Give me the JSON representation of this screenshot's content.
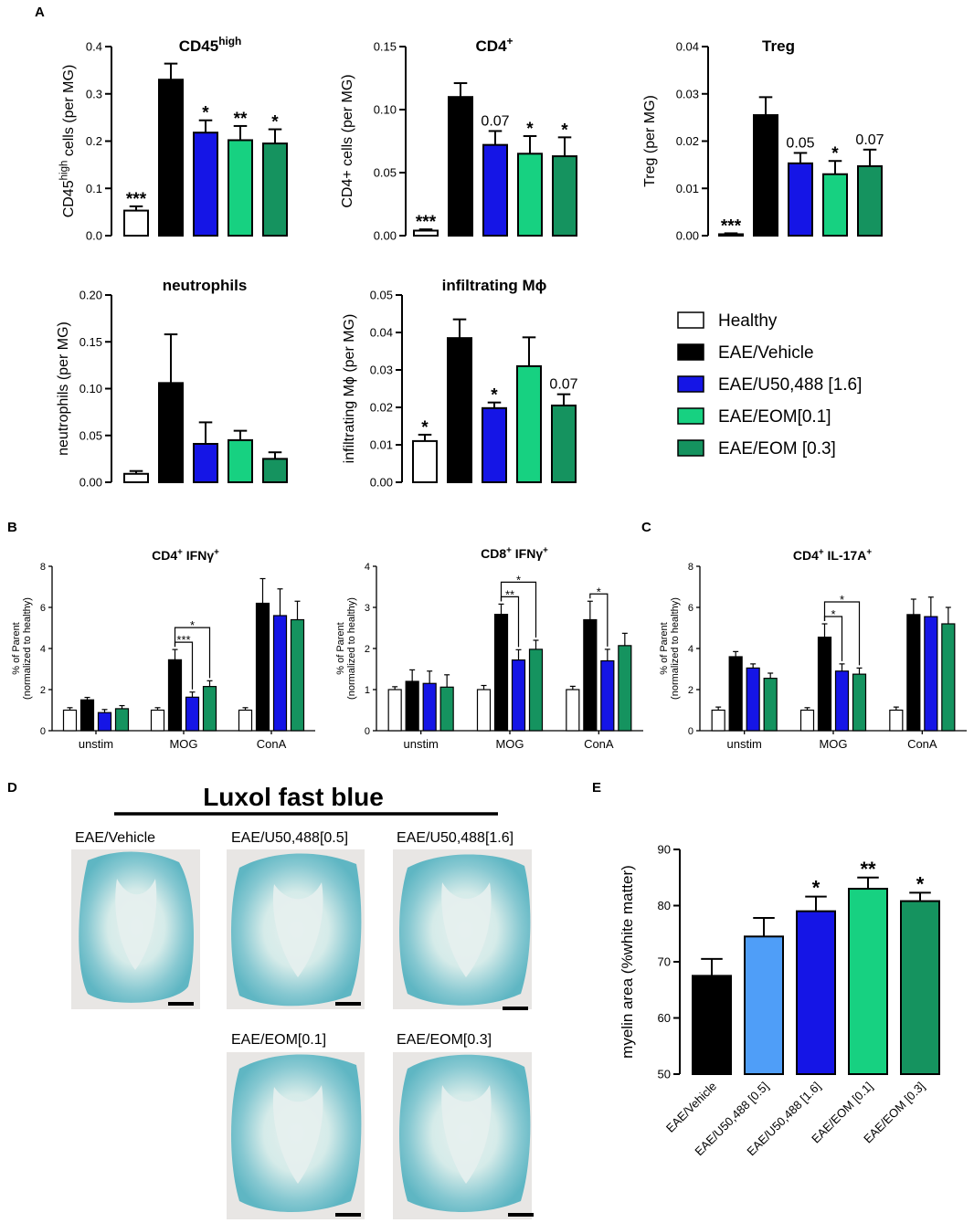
{
  "panel_labels": [
    "A",
    "B",
    "C",
    "D",
    "E"
  ],
  "colors": {
    "healthy": "#ffffff",
    "vehicle": "#000000",
    "u50_05": "#4f9ef8",
    "u50_16": "#1515e6",
    "eom_01": "#17d181",
    "eom_03": "#15935f",
    "tissue_fill": "#62b8c4",
    "tissue_light": "#e6f0ee",
    "photo_bg": "#e8e6e4"
  },
  "legend": {
    "items": [
      {
        "label": "Healthy",
        "color": "#ffffff"
      },
      {
        "label": "EAE/Vehicle",
        "color": "#000000"
      },
      {
        "label": "EAE/U50,488 [1.6]",
        "color": "#1515e6"
      },
      {
        "label": "EAE/EOM[0.1]",
        "color": "#17d181"
      },
      {
        "label": "EAE/EOM [0.3]",
        "color": "#15935f"
      }
    ]
  },
  "chart_data": [
    {
      "id": "cd45",
      "type": "bar",
      "title": "CD45",
      "title_sup": "high",
      "ylabel": "CD45",
      "ylabel_sup": "high",
      "ylabel_rest": " cells (per MG)",
      "ylim": [
        0,
        0.4
      ],
      "yticks": [
        0.0,
        0.1,
        0.2,
        0.3,
        0.4
      ],
      "ytick_labels": [
        "0.0",
        "0.1",
        "0.2",
        "0.3",
        "0.4"
      ],
      "categories": [
        "Healthy",
        "EAE/Vehicle",
        "EAE/U50,488 [1.6]",
        "EAE/EOM[0.1]",
        "EAE/EOM [0.3]"
      ],
      "values": [
        0.053,
        0.33,
        0.218,
        0.202,
        0.195
      ],
      "errors": [
        0.009,
        0.034,
        0.026,
        0.03,
        0.03
      ],
      "annotations": [
        "***",
        "",
        "*",
        "**",
        "*"
      ]
    },
    {
      "id": "cd4",
      "type": "bar",
      "title": "CD4",
      "title_sup": "+",
      "ylabel": "CD4+ cells (per MG)",
      "ylim": [
        0,
        0.15
      ],
      "yticks": [
        0.0,
        0.05,
        0.1,
        0.15
      ],
      "ytick_labels": [
        "0.00",
        "0.05",
        "0.10",
        "0.15"
      ],
      "categories": [
        "Healthy",
        "EAE/Vehicle",
        "EAE/U50,488 [1.6]",
        "EAE/EOM[0.1]",
        "EAE/EOM [0.3]"
      ],
      "values": [
        0.004,
        0.11,
        0.072,
        0.065,
        0.063
      ],
      "errors": [
        0.001,
        0.011,
        0.011,
        0.014,
        0.015
      ],
      "annotations": [
        "***",
        "",
        "0.07",
        "*",
        "*"
      ]
    },
    {
      "id": "treg",
      "type": "bar",
      "title": "Treg",
      "ylabel": "Treg (per MG)",
      "ylim": [
        0,
        0.04
      ],
      "yticks": [
        0.0,
        0.01,
        0.02,
        0.03,
        0.04
      ],
      "ytick_labels": [
        "0.00",
        "0.01",
        "0.02",
        "0.03",
        "0.04"
      ],
      "categories": [
        "Healthy",
        "EAE/Vehicle",
        "EAE/U50,488 [1.6]",
        "EAE/EOM[0.1]",
        "EAE/EOM [0.3]"
      ],
      "values": [
        0.0003,
        0.0255,
        0.0153,
        0.013,
        0.0147
      ],
      "errors": [
        0.0002,
        0.0038,
        0.0022,
        0.0028,
        0.0035
      ],
      "annotations": [
        "***",
        "",
        "0.05",
        "*",
        "0.07"
      ]
    },
    {
      "id": "neutrophils",
      "type": "bar",
      "title": "neutrophils",
      "ylabel": "neutrophils (per MG)",
      "ylim": [
        0,
        0.2
      ],
      "yticks": [
        0.0,
        0.05,
        0.1,
        0.15,
        0.2
      ],
      "ytick_labels": [
        "0.00",
        "0.05",
        "0.10",
        "0.15",
        "0.20"
      ],
      "categories": [
        "Healthy",
        "EAE/Vehicle",
        "EAE/U50,488 [1.6]",
        "EAE/EOM[0.1]",
        "EAE/EOM [0.3]"
      ],
      "values": [
        0.009,
        0.106,
        0.041,
        0.045,
        0.025
      ],
      "errors": [
        0.003,
        0.052,
        0.023,
        0.01,
        0.007
      ],
      "annotations": [
        "",
        "",
        "",
        "",
        ""
      ]
    },
    {
      "id": "mphi",
      "type": "bar",
      "title": "infiltrating Mϕ",
      "ylabel": "infiltrating Mϕ (per MG)",
      "ylim": [
        0,
        0.05
      ],
      "yticks": [
        0.0,
        0.01,
        0.02,
        0.03,
        0.04,
        0.05
      ],
      "ytick_labels": [
        "0.00",
        "0.01",
        "0.02",
        "0.03",
        "0.04",
        "0.05"
      ],
      "categories": [
        "Healthy",
        "EAE/Vehicle",
        "EAE/U50,488 [1.6]",
        "EAE/EOM[0.1]",
        "EAE/EOM [0.3]"
      ],
      "values": [
        0.011,
        0.0385,
        0.0198,
        0.031,
        0.0205
      ],
      "errors": [
        0.0017,
        0.005,
        0.0015,
        0.0077,
        0.003
      ],
      "annotations": [
        "*",
        "",
        "*",
        "",
        "0.07"
      ]
    },
    {
      "id": "cd4ifng",
      "type": "bar",
      "title": "CD4",
      "title_sup": "+",
      "title_rest": " IFNγ",
      "title_sup2": "+",
      "ylabel": "% of Parent",
      "ylabel2": "(normalized to healthy)",
      "ylim": [
        0,
        8
      ],
      "yticks": [
        0,
        2,
        4,
        6,
        8
      ],
      "ytick_labels": [
        "0",
        "2",
        "4",
        "6",
        "8"
      ],
      "categories": [
        "unstim",
        "MOG",
        "ConA"
      ],
      "series": [
        {
          "name": "Healthy",
          "values": [
            1.0,
            1.0,
            1.0
          ],
          "errors": [
            0.12,
            0.12,
            0.12
          ]
        },
        {
          "name": "EAE/Vehicle",
          "values": [
            1.5,
            3.45,
            6.2
          ],
          "errors": [
            0.12,
            0.5,
            1.2
          ]
        },
        {
          "name": "EAE/U50,488 [1.6]",
          "values": [
            0.88,
            1.63,
            5.6
          ],
          "errors": [
            0.15,
            0.25,
            1.3
          ]
        },
        {
          "name": "EAE/EOM [0.3]",
          "values": [
            1.07,
            2.15,
            5.4
          ],
          "errors": [
            0.15,
            0.28,
            0.9
          ]
        }
      ],
      "brackets": [
        {
          "group": 1,
          "from": 1,
          "to": 3,
          "label": "*"
        },
        {
          "group": 1,
          "from": 1,
          "to": 2,
          "label": "***"
        }
      ]
    },
    {
      "id": "cd8ifng",
      "type": "bar",
      "title": "CD8",
      "title_sup": "+",
      "title_rest": " IFNγ",
      "title_sup2": "+",
      "ylabel": "% of Parent",
      "ylabel2": "(normalized to healthy)",
      "ylim": [
        0,
        4
      ],
      "yticks": [
        0,
        1,
        2,
        3,
        4
      ],
      "ytick_labels": [
        "0",
        "1",
        "2",
        "3",
        "4"
      ],
      "categories": [
        "unstim",
        "MOG",
        "ConA"
      ],
      "series": [
        {
          "name": "Healthy",
          "values": [
            1.0,
            1.0,
            1.0
          ],
          "errors": [
            0.07,
            0.1,
            0.08
          ]
        },
        {
          "name": "EAE/Vehicle",
          "values": [
            1.2,
            2.83,
            2.7
          ],
          "errors": [
            0.28,
            0.25,
            0.45
          ]
        },
        {
          "name": "EAE/U50,488 [1.6]",
          "values": [
            1.15,
            1.72,
            1.7
          ],
          "errors": [
            0.3,
            0.25,
            0.28
          ]
        },
        {
          "name": "EAE/EOM [0.3]",
          "values": [
            1.06,
            1.98,
            2.07
          ],
          "errors": [
            0.3,
            0.22,
            0.3
          ]
        }
      ],
      "brackets": [
        {
          "group": 1,
          "from": 1,
          "to": 3,
          "label": "*"
        },
        {
          "group": 1,
          "from": 1,
          "to": 2,
          "label": "**"
        },
        {
          "group": 2,
          "from": 1,
          "to": 2,
          "label": "*"
        }
      ]
    },
    {
      "id": "cd4il17",
      "type": "bar",
      "title": "CD4",
      "title_sup": "+",
      "title_rest": " IL-17A",
      "title_sup2": "+",
      "ylabel": "% of Parent",
      "ylabel2": "(normalized to healthy)",
      "ylim": [
        0,
        8
      ],
      "yticks": [
        0,
        2,
        4,
        6,
        8
      ],
      "ytick_labels": [
        "0",
        "2",
        "4",
        "6",
        "8"
      ],
      "categories": [
        "unstim",
        "MOG",
        "ConA"
      ],
      "series": [
        {
          "name": "Healthy",
          "values": [
            1.0,
            1.0,
            1.0
          ],
          "errors": [
            0.15,
            0.12,
            0.15
          ]
        },
        {
          "name": "EAE/Vehicle",
          "values": [
            3.6,
            4.55,
            5.65
          ],
          "errors": [
            0.25,
            0.65,
            0.75
          ]
        },
        {
          "name": "EAE/U50,488 [1.6]",
          "values": [
            3.05,
            2.9,
            5.55
          ],
          "errors": [
            0.2,
            0.35,
            0.95
          ]
        },
        {
          "name": "EAE/EOM [0.3]",
          "values": [
            2.55,
            2.75,
            5.2
          ],
          "errors": [
            0.25,
            0.3,
            0.8
          ]
        }
      ],
      "brackets": [
        {
          "group": 1,
          "from": 1,
          "to": 3,
          "label": "*"
        },
        {
          "group": 1,
          "from": 1,
          "to": 2,
          "label": "*"
        }
      ]
    },
    {
      "id": "myelin",
      "type": "bar",
      "ylabel": "myelin area (%white matter)",
      "ylim": [
        50,
        90
      ],
      "yticks": [
        50,
        60,
        70,
        80,
        90
      ],
      "ytick_labels": [
        "50",
        "60",
        "70",
        "80",
        "90"
      ],
      "categories": [
        "EAE/Vehicle",
        "EAE/U50,488 [0.5]",
        "EAE/U50,488 [1.6]",
        "EAE/EOM [0.1]",
        "EAE/EOM [0.3]"
      ],
      "values": [
        67.5,
        74.5,
        79.0,
        83.0,
        80.8
      ],
      "errors": [
        3.0,
        3.3,
        2.6,
        2.0,
        1.5
      ],
      "annotations": [
        "",
        "",
        "*",
        "**",
        "*"
      ]
    }
  ],
  "histology": {
    "title": "Luxol fast blue",
    "images": [
      {
        "label": "EAE/Vehicle"
      },
      {
        "label": "EAE/U50,488[0.5]"
      },
      {
        "label": "EAE/U50,488[1.6]"
      },
      {
        "label": "EAE/EOM[0.1]"
      },
      {
        "label": "EAE/EOM[0.3]"
      }
    ]
  }
}
